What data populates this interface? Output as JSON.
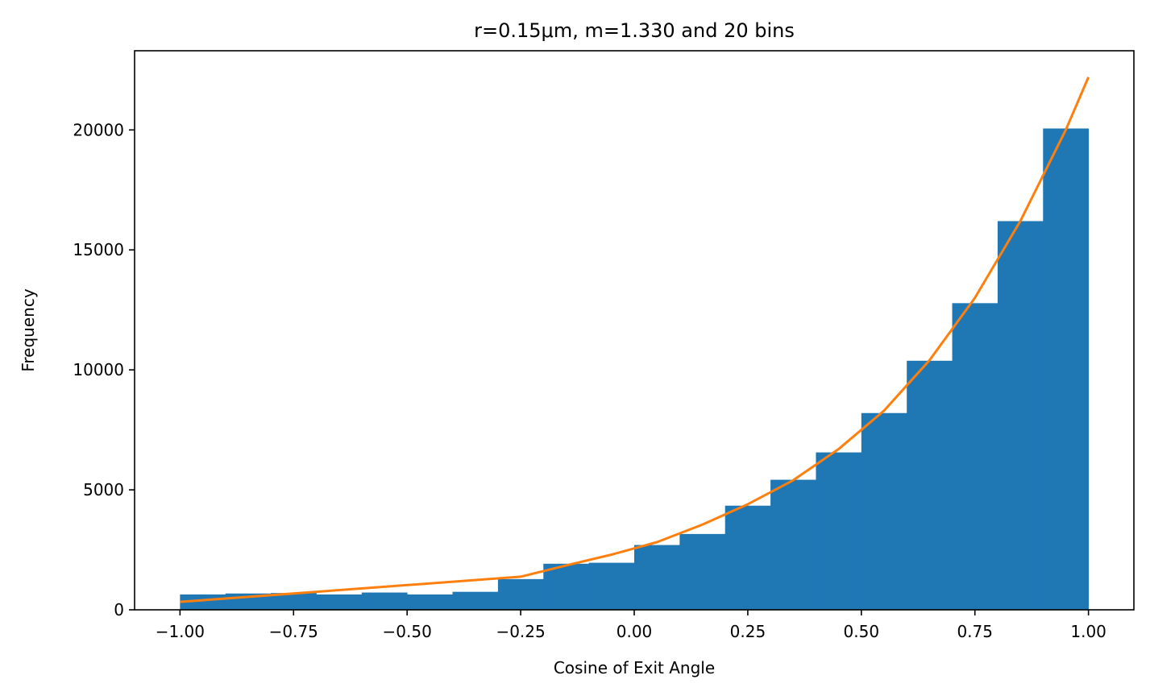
{
  "chart_data": {
    "type": "bar",
    "title": "r=0.15μm, m=1.330 and 20 bins",
    "xlabel": "Cosine of Exit Angle",
    "ylabel": "Frequency",
    "xlim": [
      -1.1,
      1.1
    ],
    "ylim": [
      0,
      23300
    ],
    "xticks": [
      -1.0,
      -0.75,
      -0.5,
      -0.25,
      0.0,
      0.25,
      0.5,
      0.75,
      1.0
    ],
    "xtick_labels": [
      "−1.00",
      "−0.75",
      "−0.50",
      "−0.25",
      "0.00",
      "0.25",
      "0.50",
      "0.75",
      "1.00"
    ],
    "yticks": [
      0,
      5000,
      10000,
      15000,
      20000
    ],
    "ytick_labels": [
      "0",
      "5000",
      "10000",
      "15000",
      "20000"
    ],
    "grid": false,
    "histogram": {
      "bin_edges": [
        -1.0,
        -0.9,
        -0.8,
        -0.7,
        -0.6,
        -0.5,
        -0.4,
        -0.3,
        -0.2,
        -0.1,
        0.0,
        0.1,
        0.2,
        0.3,
        0.4,
        0.5,
        0.6,
        0.7,
        0.8,
        0.9,
        1.0
      ],
      "values": [
        640,
        680,
        700,
        640,
        720,
        640,
        750,
        1280,
        1920,
        1960,
        2700,
        3160,
        4340,
        5420,
        6560,
        8200,
        10380,
        12780,
        16200,
        20060
      ],
      "color": "#1f77b4"
    },
    "series": [
      {
        "type": "line",
        "color": "#ff7f0e",
        "x": [
          -1.0,
          -0.25,
          -0.15,
          -0.05,
          0.05,
          0.15,
          0.25,
          0.35,
          0.45,
          0.55,
          0.65,
          0.75,
          0.85,
          0.95,
          1.0
        ],
        "y": [
          330,
          1380,
          1850,
          2300,
          2820,
          3550,
          4400,
          5400,
          6700,
          8300,
          10400,
          13000,
          16200,
          20000,
          22200
        ]
      }
    ]
  }
}
